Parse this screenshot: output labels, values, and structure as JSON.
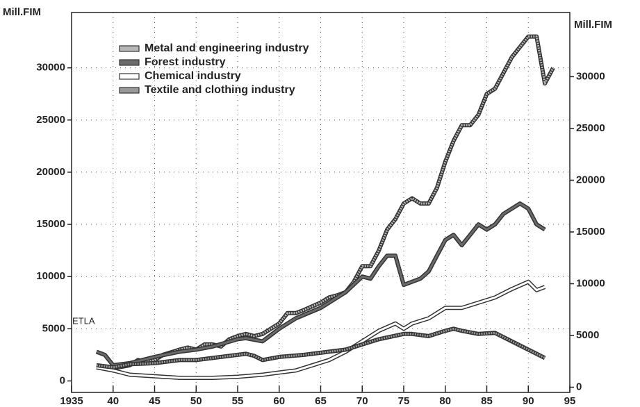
{
  "chart_data": {
    "type": "line",
    "y_label": "Mill.FIM",
    "y2_label": "Mill.FIM",
    "annotation": "ETLA",
    "xlim": [
      1935,
      1995
    ],
    "xticks": [
      1935,
      {
        "value": 1940,
        "label": "40"
      },
      {
        "value": 1945,
        "label": "45"
      },
      {
        "value": 1950,
        "label": "50"
      },
      {
        "value": 1955,
        "label": "55"
      },
      {
        "value": 1960,
        "label": "60"
      },
      {
        "value": 1965,
        "label": "65"
      },
      {
        "value": 1970,
        "label": "70"
      },
      {
        "value": 1975,
        "label": "75"
      },
      {
        "value": 1980,
        "label": "80"
      },
      {
        "value": 1985,
        "label": "85"
      },
      {
        "value": 1990,
        "label": "90"
      },
      {
        "value": 1995,
        "label": "95"
      }
    ],
    "ylim": [
      -1100,
      35300
    ],
    "yticks": [
      0,
      5000,
      10000,
      15000,
      20000,
      25000,
      30000
    ],
    "y2lim": [
      -500,
      36200
    ],
    "y2ticks": [
      0,
      5000,
      10000,
      15000,
      20000,
      25000,
      30000
    ],
    "grid": true,
    "legend": "upper left",
    "series": [
      {
        "name": "Metal and engineering industry",
        "color": "#b8b8b8",
        "x": [
          1938,
          1940,
          1942,
          1943,
          1944,
          1945,
          1946,
          1948,
          1949,
          1950,
          1951,
          1952,
          1953,
          1954,
          1955,
          1956,
          1957,
          1958,
          1960,
          1961,
          1962,
          1963,
          1965,
          1966,
          1967,
          1968,
          1969,
          1970,
          1971,
          1972,
          1973,
          1974,
          1975,
          1976,
          1977,
          1978,
          1979,
          1980,
          1981,
          1982,
          1983,
          1984,
          1985,
          1986,
          1987,
          1988,
          1989,
          1990,
          1991,
          1992,
          1993
        ],
        "values": [
          1500,
          1200,
          1500,
          2000,
          1800,
          2000,
          2500,
          3000,
          3200,
          3000,
          3500,
          3500,
          3300,
          4000,
          4300,
          4500,
          4300,
          4500,
          5500,
          6500,
          6500,
          6800,
          7500,
          8000,
          8200,
          8500,
          9500,
          11000,
          11000,
          12500,
          14500,
          15500,
          17000,
          17500,
          17000,
          17000,
          18500,
          21000,
          23000,
          24500,
          24500,
          25500,
          27500,
          28000,
          29500,
          31000,
          32000,
          33000,
          33000,
          28500,
          30000
        ]
      },
      {
        "name": "Forest industry",
        "color": "#6a6a6a",
        "x": [
          1938,
          1939,
          1940,
          1942,
          1945,
          1948,
          1950,
          1952,
          1955,
          1956,
          1958,
          1960,
          1962,
          1965,
          1968,
          1970,
          1971,
          1972,
          1973,
          1974,
          1975,
          1976,
          1977,
          1978,
          1979,
          1980,
          1981,
          1982,
          1983,
          1984,
          1985,
          1986,
          1987,
          1988,
          1989,
          1990,
          1991,
          1992
        ],
        "values": [
          2800,
          2500,
          1500,
          1700,
          2300,
          2800,
          3000,
          3300,
          4000,
          4100,
          3800,
          5000,
          6000,
          7000,
          8500,
          10000,
          9800,
          11000,
          12000,
          12000,
          9200,
          9500,
          9800,
          10500,
          12000,
          13500,
          14000,
          13000,
          14000,
          15000,
          14500,
          15000,
          16000,
          16500,
          17000,
          16500,
          15000,
          14500
        ]
      },
      {
        "name": "Chemical industry",
        "color": "#ffffff",
        "x": [
          1938,
          1940,
          1942,
          1944,
          1946,
          1948,
          1950,
          1952,
          1955,
          1958,
          1960,
          1962,
          1964,
          1966,
          1968,
          1970,
          1972,
          1974,
          1975,
          1976,
          1978,
          1980,
          1982,
          1984,
          1986,
          1988,
          1990,
          1991,
          1992
        ],
        "values": [
          1300,
          1000,
          600,
          500,
          400,
          300,
          300,
          300,
          400,
          600,
          800,
          1000,
          1500,
          2000,
          2800,
          3800,
          4800,
          5500,
          5000,
          5500,
          6000,
          7000,
          7000,
          7500,
          8000,
          8800,
          9500,
          8700,
          9000
        ]
      },
      {
        "name": "Textile and clothing industry",
        "color": "#9a9a9a",
        "x": [
          1938,
          1940,
          1942,
          1945,
          1948,
          1950,
          1952,
          1955,
          1956,
          1957,
          1958,
          1960,
          1963,
          1965,
          1968,
          1970,
          1972,
          1975,
          1976,
          1978,
          1980,
          1981,
          1982,
          1984,
          1986,
          1988,
          1990,
          1992
        ],
        "values": [
          1500,
          1300,
          1600,
          1700,
          2000,
          2000,
          2200,
          2500,
          2600,
          2400,
          2000,
          2300,
          2500,
          2700,
          3000,
          3500,
          4000,
          4500,
          4500,
          4300,
          4800,
          5000,
          4800,
          4500,
          4600,
          3800,
          3000,
          2200
        ]
      }
    ]
  }
}
